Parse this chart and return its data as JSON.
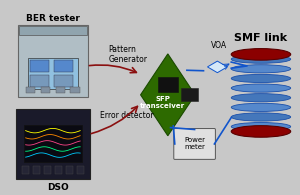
{
  "bg_color": "#c8c8c8",
  "labels": {
    "ber_tester": "BER tester",
    "pattern_gen": "Pattern\nGenerator",
    "sfp": "SFP\ntransceiver",
    "voa": "VOA",
    "smf_link": "SMF link",
    "error_det": "Error detector",
    "dso": "DSO",
    "power_meter": "Power\nmeter"
  },
  "lc_blue": "#1155cc",
  "lc_red": "#8B1010",
  "lw": 1.2,
  "fs": 5.5
}
